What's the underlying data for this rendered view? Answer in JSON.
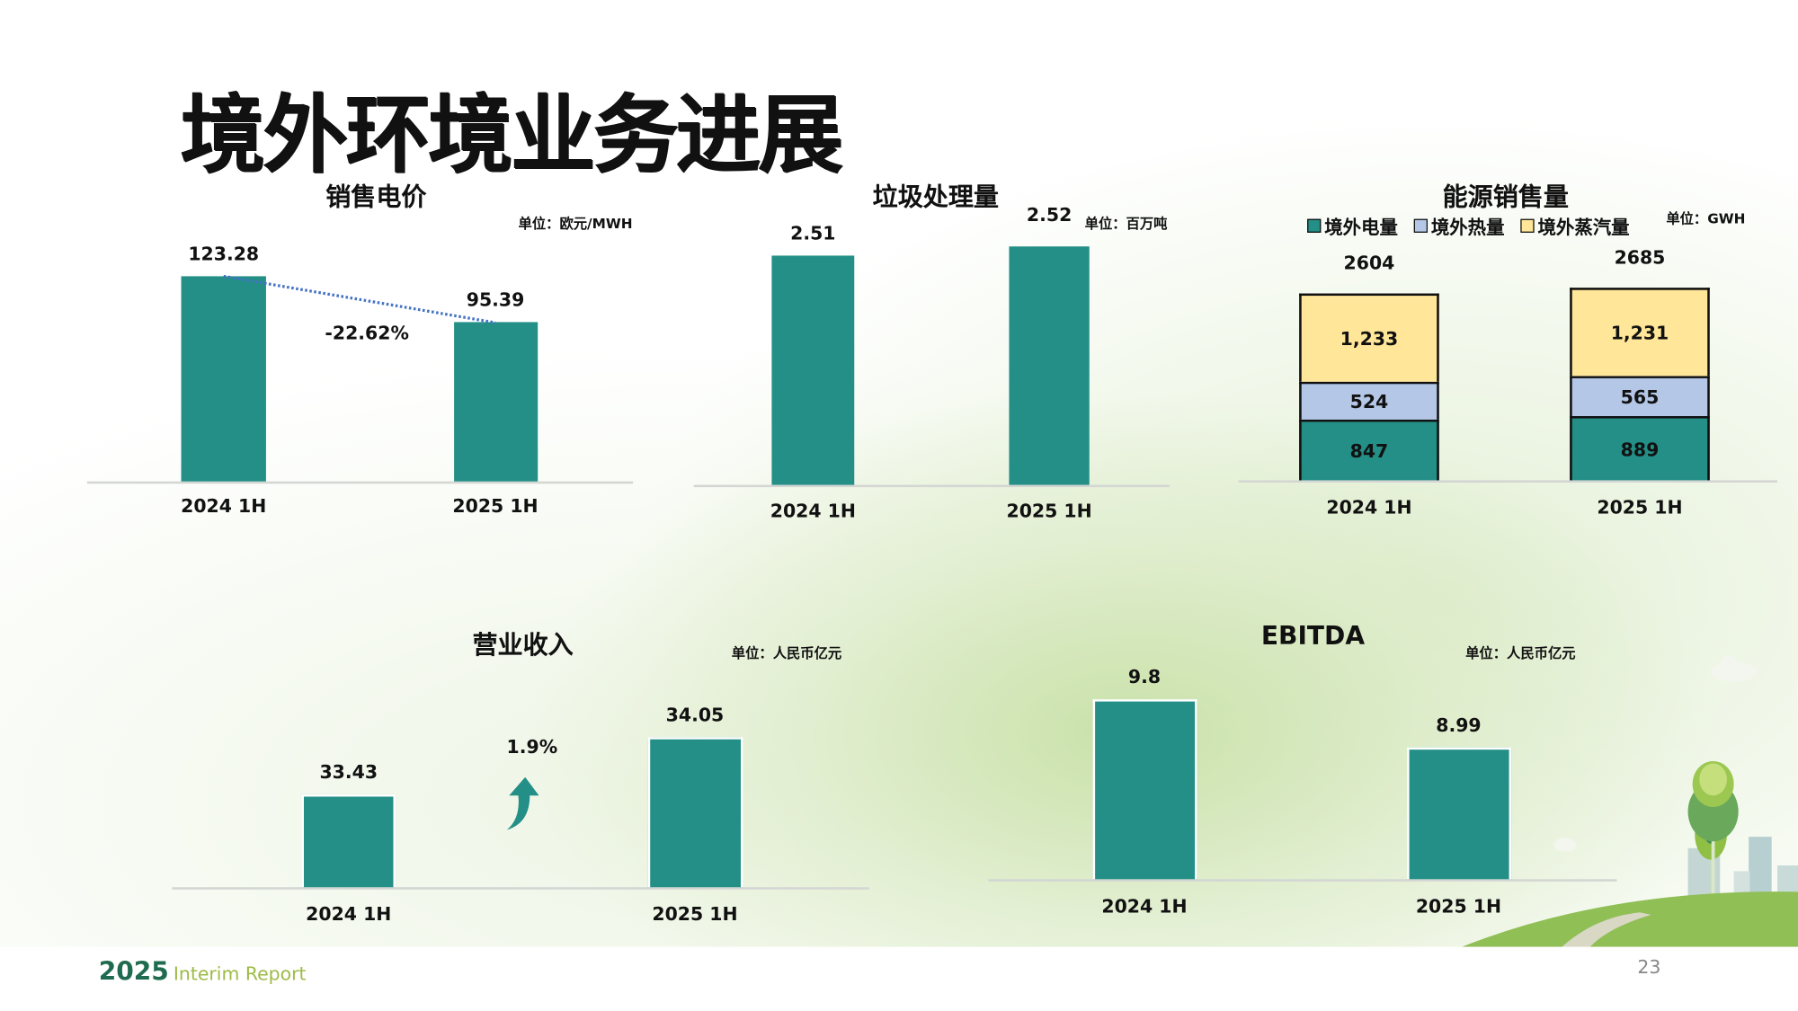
{
  "page": {
    "title": "境外环境业务进展",
    "footer_year": "2025",
    "footer_text": "Interim Report",
    "page_number": "23"
  },
  "colors": {
    "bar": "#238f86",
    "electricity": "#238f86",
    "heat": "#b4c7e7",
    "steam": "#ffe699",
    "trend_line": "#4472c4"
  },
  "chart_data": [
    {
      "id": "price",
      "type": "bar",
      "title": "销售电价",
      "unit": "单位：欧元/MWH",
      "categories": [
        "2024 1H",
        "2025 1H"
      ],
      "values": [
        123.28,
        95.39
      ],
      "value_labels": [
        "123.28",
        "95.39"
      ],
      "annotation": "-22.62%",
      "trend_line": "dotted",
      "ylim": [
        0,
        130
      ]
    },
    {
      "id": "waste",
      "type": "bar",
      "title": "垃圾处理量",
      "unit": "单位：百万吨",
      "categories": [
        "2024 1H",
        "2025 1H"
      ],
      "values": [
        2.51,
        2.52
      ],
      "value_labels": [
        "2.51",
        "2.52"
      ],
      "ylim": [
        2.26,
        2.55
      ]
    },
    {
      "id": "energy",
      "type": "bar",
      "stacked": true,
      "title": "能源销售量",
      "unit": "单位：GWH",
      "legend_position": "top",
      "categories": [
        "2024 1H",
        "2025 1H"
      ],
      "series": [
        {
          "name": "境外电量",
          "values": [
            847,
            889
          ],
          "labels": [
            "847",
            "889"
          ]
        },
        {
          "name": "境外热量",
          "values": [
            524,
            565
          ],
          "labels": [
            "524",
            "565"
          ]
        },
        {
          "name": "境外蒸汽量",
          "values": [
            1233,
            1231
          ],
          "labels": [
            "1,233",
            "1,231"
          ]
        }
      ],
      "totals": [
        "2604",
        "2685"
      ],
      "ylim": [
        0,
        2700
      ]
    },
    {
      "id": "revenue",
      "type": "bar",
      "title": "营业收入",
      "unit": "单位：人民币亿元",
      "categories": [
        "2024 1H",
        "2025 1H"
      ],
      "values": [
        33.43,
        34.05
      ],
      "value_labels": [
        "33.43",
        "34.05"
      ],
      "annotation": "1.9%",
      "annotation_icon": "up-arrow-icon",
      "ylim": [
        32.42,
        34.2
      ]
    },
    {
      "id": "ebitda",
      "type": "bar",
      "title": "EBITDA",
      "unit": "单位：人民币亿元",
      "categories": [
        "2024 1H",
        "2025 1H"
      ],
      "values": [
        9.8,
        8.99
      ],
      "value_labels": [
        "9.8",
        "8.99"
      ],
      "ylim": [
        6.77,
        10
      ]
    }
  ]
}
